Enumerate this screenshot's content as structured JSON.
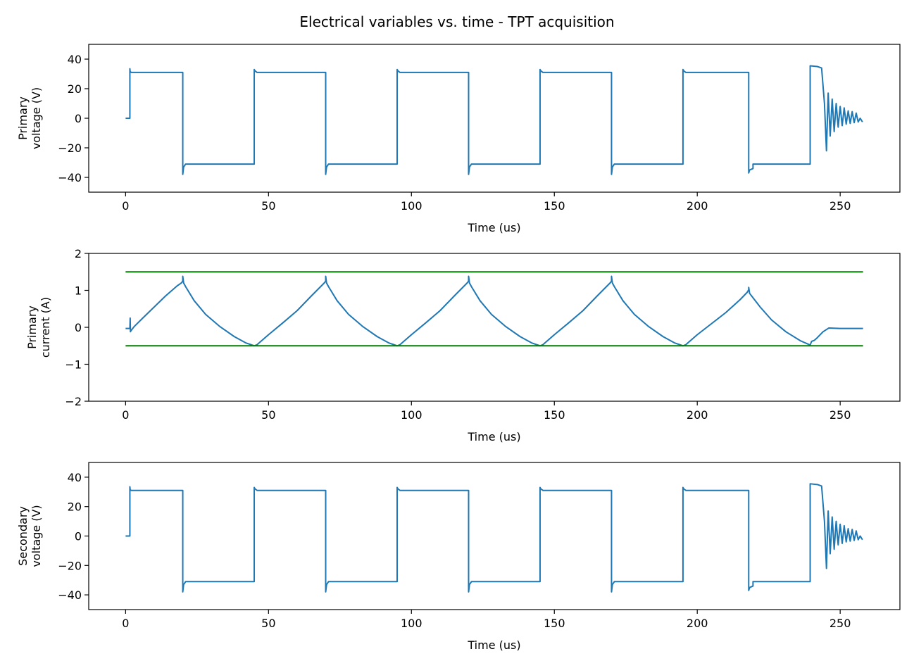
{
  "figure": {
    "title": "Electrical variables vs. time - TPT acquisition"
  },
  "colors": {
    "signal": "#1f77b4",
    "limits": "#008000",
    "axes": "#000000"
  },
  "chart_data": [
    {
      "type": "line",
      "id": "primary-voltage",
      "xlabel": "Time (us)",
      "ylabel": [
        "Primary",
        "voltage (V)"
      ],
      "xlim": [
        -12.9,
        270.9
      ],
      "ylim": [
        -50,
        50
      ],
      "xticks": [
        0,
        50,
        100,
        150,
        200,
        250
      ],
      "yticks": [
        -40,
        -20,
        0,
        20,
        40
      ],
      "grid": false,
      "waveform": "square",
      "series": [
        {
          "x": [
            0,
            1.5,
            1.5,
            1.6,
            2,
            20,
            20,
            20.3,
            21,
            45,
            45,
            45.3,
            46,
            70,
            70,
            70.3,
            71,
            95,
            95,
            95.3,
            96,
            120,
            120,
            120.3,
            121,
            145,
            145,
            145.3,
            146,
            170,
            170,
            170.3,
            171,
            195,
            195,
            195.3,
            196,
            218,
            218,
            218.3,
            219.5,
            219.5,
            239.5,
            239.5,
            242,
            243.5,
            244.5,
            245.2,
            245.8,
            246.5,
            247.2,
            247.9,
            248.6,
            249.3,
            250,
            250.7,
            251.4,
            252.1,
            252.8,
            253.5,
            254.2,
            254.9,
            255.6,
            256.3,
            257,
            257.8
          ],
          "y": [
            0,
            0,
            33.5,
            31.5,
            31,
            31,
            -38,
            -33,
            -31,
            -31,
            33,
            32,
            31,
            31,
            -38,
            -33,
            -31,
            -31,
            33,
            32,
            31,
            31,
            -38,
            -33,
            -31,
            -31,
            33,
            32,
            31,
            31,
            -38,
            -33,
            -31,
            -31,
            33,
            32,
            31,
            31,
            -37,
            -35,
            -34,
            -31,
            -31,
            35.5,
            35,
            34,
            10,
            -22,
            17,
            -12,
            13,
            -9,
            10,
            -6,
            8,
            -5,
            7,
            -4,
            5,
            -3.5,
            4.5,
            -3,
            3.5,
            -2.5,
            0,
            -2.5
          ]
        }
      ]
    },
    {
      "type": "line",
      "id": "primary-current",
      "xlabel": "Time (us)",
      "ylabel": [
        "Primary",
        "current (A)"
      ],
      "xlim": [
        -12.9,
        270.9
      ],
      "ylim": [
        -2,
        2
      ],
      "xticks": [
        0,
        50,
        100,
        150,
        200,
        250
      ],
      "yticks": [
        -2,
        -1,
        0,
        1,
        2
      ],
      "grid": false,
      "series": [
        {
          "x": [
            0,
            1.5,
            1.6,
            1.7,
            1.8,
            3,
            6,
            10,
            14,
            18,
            19.5,
            20,
            20,
            20.3,
            21,
            24,
            28,
            33,
            38,
            42,
            45,
            46,
            50,
            55,
            60,
            65,
            69.5,
            70,
            70,
            70.3,
            71,
            74,
            78,
            83,
            88,
            92,
            95,
            96,
            100,
            105,
            110,
            115,
            119.5,
            120,
            120,
            120.3,
            121,
            124,
            128,
            133,
            138,
            142,
            145,
            146,
            150,
            155,
            160,
            165,
            169.5,
            170,
            170,
            170.3,
            171,
            174,
            178,
            183,
            188,
            192,
            195,
            196,
            200,
            205,
            210,
            215,
            217.5,
            218,
            218,
            218.3,
            219,
            222,
            226,
            231,
            236,
            239.5,
            240,
            241,
            242,
            244,
            246,
            250,
            258
          ],
          "y": [
            -0.03,
            -0.03,
            0.25,
            -0.12,
            -0.1,
            0.02,
            0.25,
            0.55,
            0.85,
            1.12,
            1.2,
            1.25,
            1.38,
            1.2,
            1.1,
            0.72,
            0.35,
            0.02,
            -0.25,
            -0.42,
            -0.5,
            -0.47,
            -0.2,
            0.12,
            0.45,
            0.85,
            1.2,
            1.25,
            1.38,
            1.2,
            1.1,
            0.72,
            0.35,
            0.02,
            -0.25,
            -0.42,
            -0.5,
            -0.47,
            -0.2,
            0.12,
            0.45,
            0.85,
            1.2,
            1.25,
            1.38,
            1.2,
            1.1,
            0.72,
            0.35,
            0.02,
            -0.25,
            -0.42,
            -0.5,
            -0.47,
            -0.2,
            0.12,
            0.45,
            0.85,
            1.2,
            1.25,
            1.38,
            1.2,
            1.1,
            0.72,
            0.35,
            0.02,
            -0.25,
            -0.42,
            -0.5,
            -0.47,
            -0.2,
            0.1,
            0.4,
            0.75,
            0.95,
            1.02,
            1.08,
            0.92,
            0.85,
            0.55,
            0.2,
            -0.12,
            -0.36,
            -0.48,
            -0.38,
            -0.35,
            -0.28,
            -0.12,
            -0.02,
            -0.03,
            -0.03
          ]
        },
        {
          "x": [
            0,
            258
          ],
          "y": [
            1.5,
            1.5
          ]
        },
        {
          "x": [
            0,
            258
          ],
          "y": [
            -0.5,
            -0.5
          ]
        }
      ]
    },
    {
      "type": "line",
      "id": "secondary-voltage",
      "xlabel": "Time (us)",
      "ylabel": [
        "Secondary",
        "voltage (V)"
      ],
      "xlim": [
        -12.9,
        270.9
      ],
      "ylim": [
        -50,
        50
      ],
      "xticks": [
        0,
        50,
        100,
        150,
        200,
        250
      ],
      "yticks": [
        -40,
        -20,
        0,
        20,
        40
      ],
      "grid": false,
      "waveform": "square",
      "series": [
        {
          "x": [
            0,
            1.5,
            1.5,
            1.6,
            2,
            20,
            20,
            20.3,
            21,
            45,
            45,
            45.3,
            46,
            70,
            70,
            70.3,
            71,
            95,
            95,
            95.3,
            96,
            120,
            120,
            120.3,
            121,
            145,
            145,
            145.3,
            146,
            170,
            170,
            170.3,
            171,
            195,
            195,
            195.3,
            196,
            218,
            218,
            218.3,
            219.5,
            219.5,
            239.5,
            239.5,
            242,
            243.5,
            244.5,
            245.2,
            245.8,
            246.5,
            247.2,
            247.9,
            248.6,
            249.3,
            250,
            250.7,
            251.4,
            252.1,
            252.8,
            253.5,
            254.2,
            254.9,
            255.6,
            256.3,
            257,
            257.8
          ],
          "y": [
            0,
            0,
            33.5,
            31.5,
            31,
            31,
            -38,
            -33,
            -31,
            -31,
            33,
            32,
            31,
            31,
            -38,
            -33,
            -31,
            -31,
            33,
            32,
            31,
            31,
            -38,
            -33,
            -31,
            -31,
            33,
            32,
            31,
            31,
            -38,
            -33,
            -31,
            -31,
            33,
            32,
            31,
            31,
            -37,
            -35,
            -34,
            -31,
            -31,
            35.5,
            35,
            34,
            10,
            -22,
            17,
            -12,
            13,
            -9,
            10,
            -6,
            8,
            -5,
            7,
            -4,
            5,
            -3.5,
            4.5,
            -3,
            3.5,
            -2.5,
            0,
            -2.5
          ]
        }
      ]
    }
  ]
}
